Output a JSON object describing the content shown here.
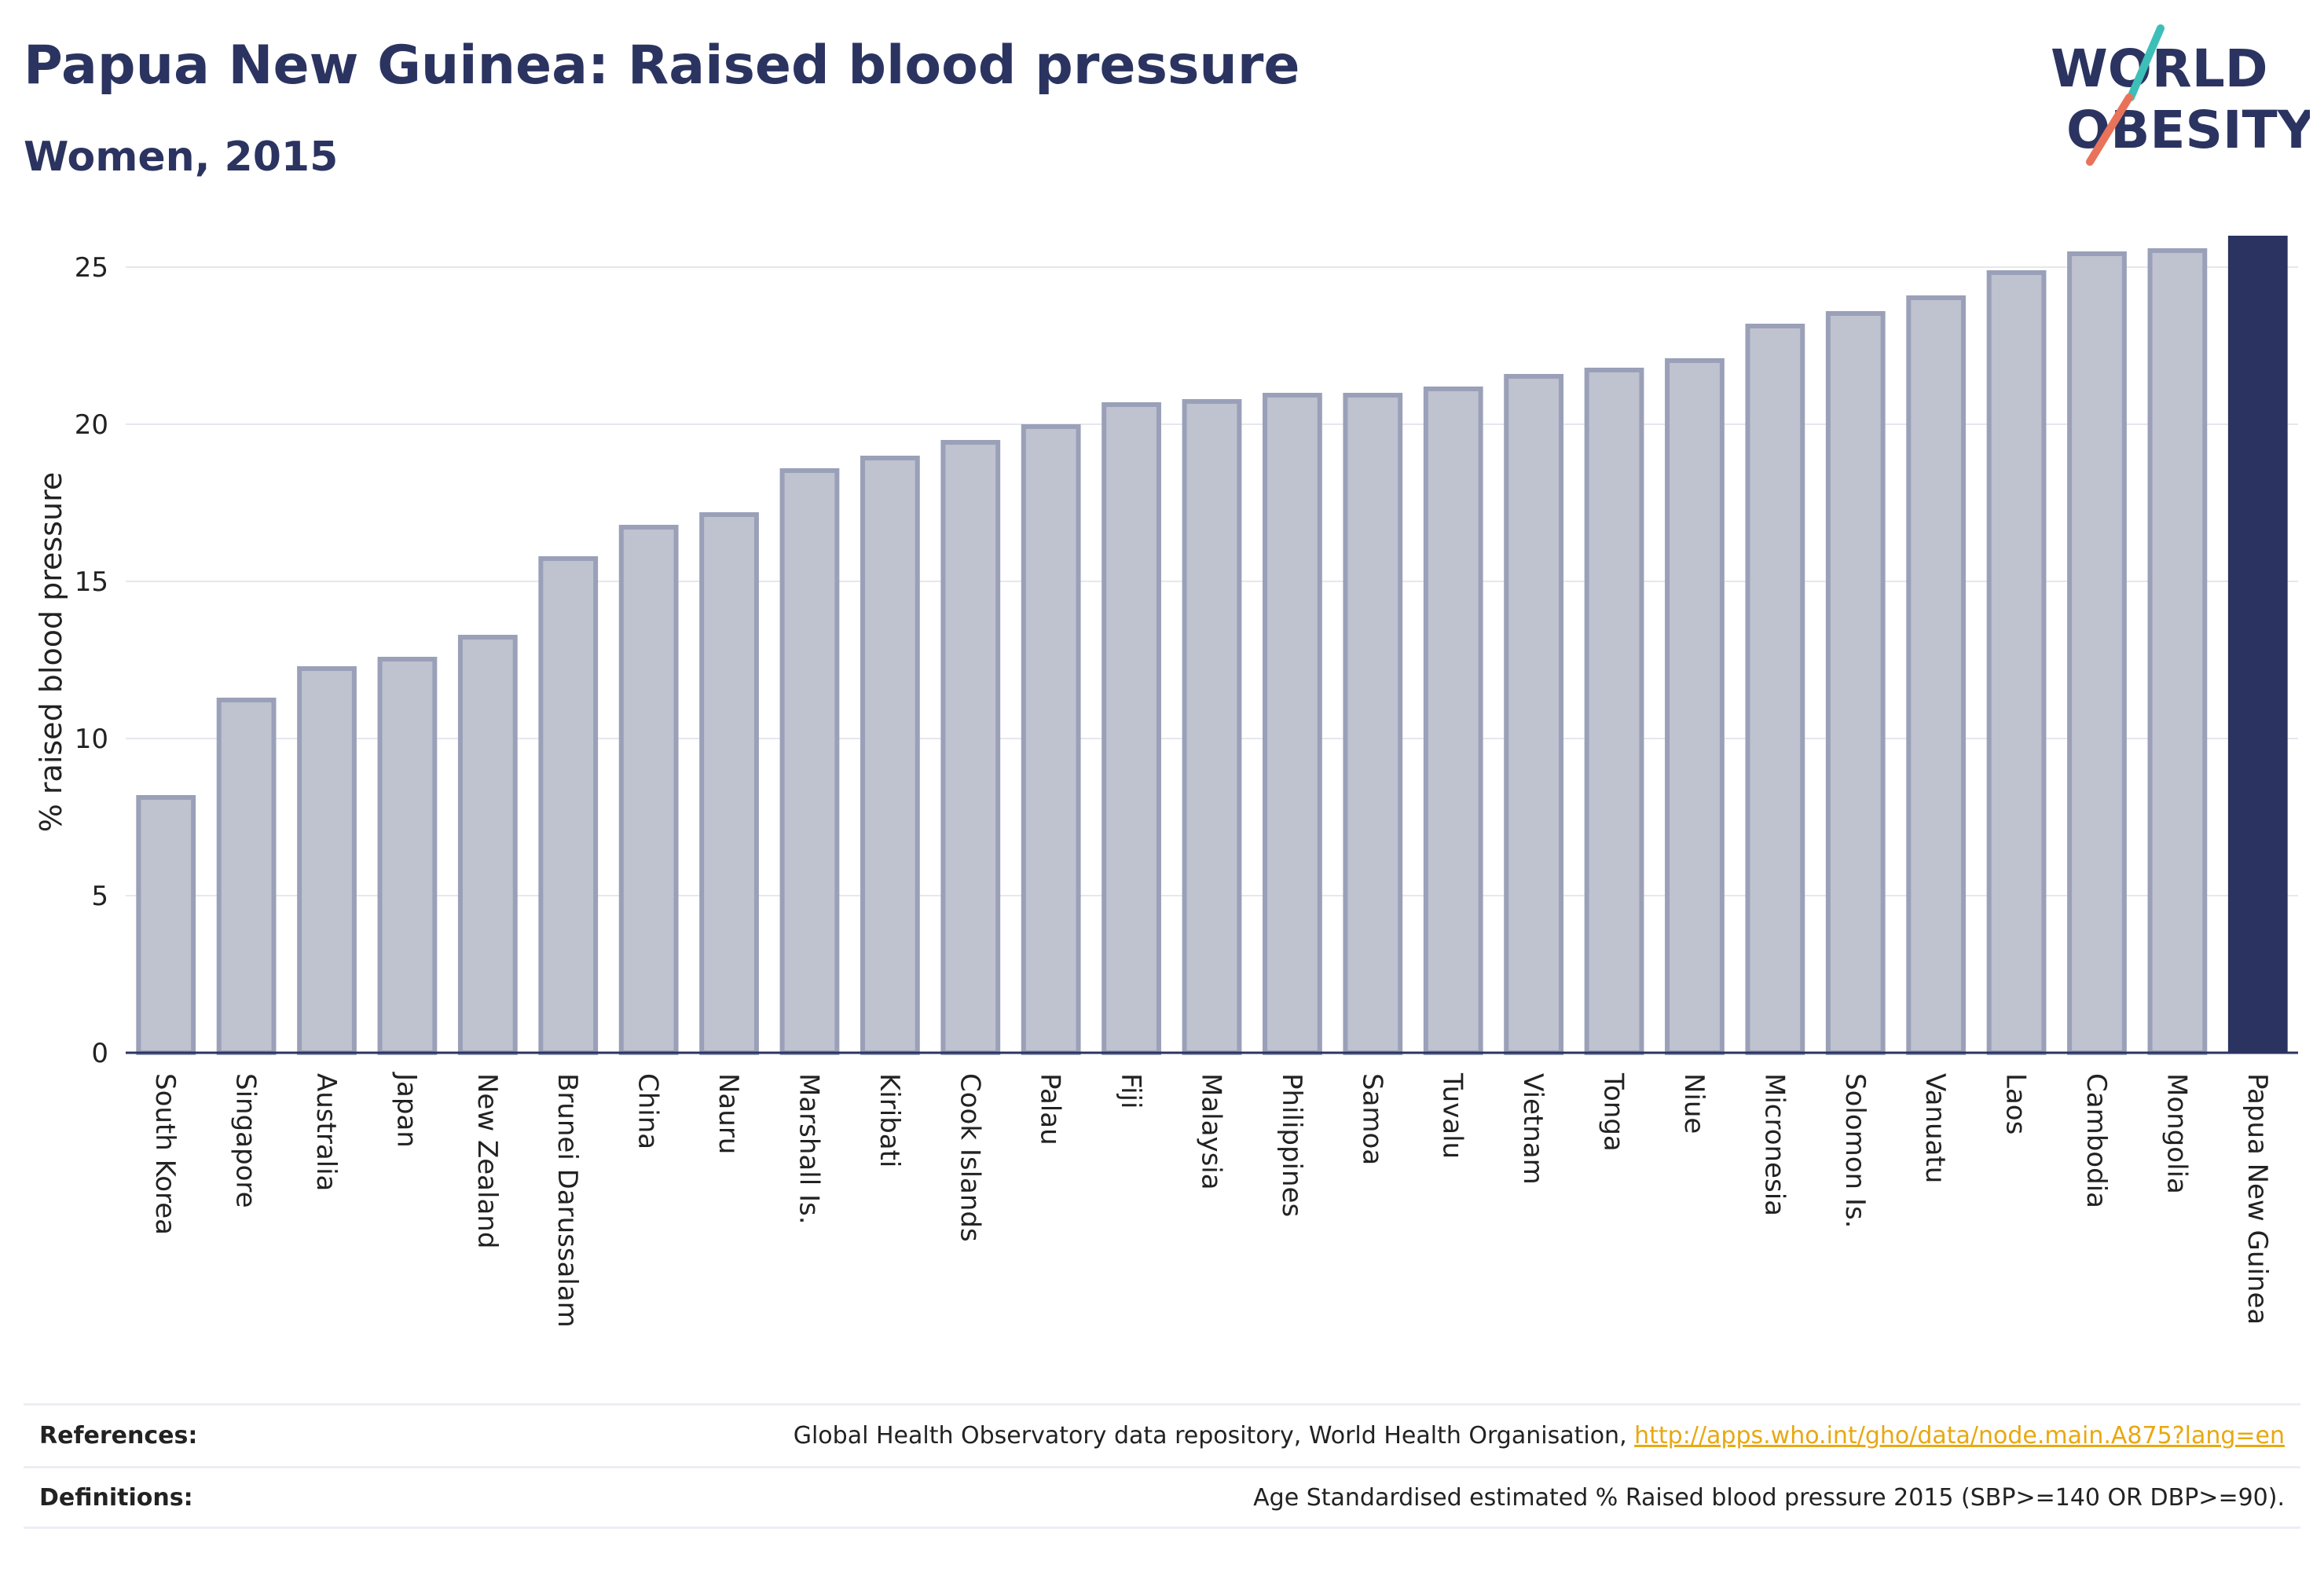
{
  "header": {
    "title": "Papua New Guinea: Raised blood pressure",
    "subtitle": "Women, 2015"
  },
  "logo": {
    "line1": "WORLD",
    "line2": "OBESITY",
    "accent_colors": [
      "#3dbfb8",
      "#e8735a"
    ]
  },
  "chart_data": {
    "type": "bar",
    "categories": [
      "South Korea",
      "Singapore",
      "Australia",
      "Japan",
      "New Zealand",
      "Brunei Darussalam",
      "China",
      "Nauru",
      "Marshall Is.",
      "Kiribati",
      "Cook Islands",
      "Palau",
      "Fiji",
      "Malaysia",
      "Philippines",
      "Samoa",
      "Tuvalu",
      "Vietnam",
      "Tonga",
      "Niue",
      "Micronesia",
      "Solomon Is.",
      "Vanuatu",
      "Laos",
      "Cambodia",
      "Mongolia",
      "Papua New Guinea"
    ],
    "values": [
      8.2,
      11.3,
      12.3,
      12.6,
      13.3,
      15.8,
      16.8,
      17.2,
      18.6,
      19.0,
      19.5,
      20.0,
      20.7,
      20.8,
      21.0,
      21.0,
      21.2,
      21.6,
      21.8,
      22.1,
      23.2,
      23.6,
      24.1,
      24.9,
      25.5,
      25.6,
      26.0
    ],
    "highlight": "Papua New Guinea",
    "ylabel": "% raised blood pressure",
    "xlabel": "",
    "ylim": [
      0,
      26
    ],
    "yticks": [
      0,
      5,
      10,
      15,
      20,
      25
    ],
    "grid": true,
    "colors": {
      "bar": "#bfc2cf",
      "bar_border": "#9aa0b8",
      "highlight": "#2b3460"
    }
  },
  "footer": {
    "references_label": "References:",
    "references_text": "Global Health Observatory data repository, World Health Organisation, ",
    "references_link": "http://apps.who.int/gho/data/node.main.A875?lang=en",
    "definitions_label": "Definitions:",
    "definitions_text": "Age Standardised estimated % Raised blood pressure 2015 (SBP>=140 OR DBP>=90)."
  }
}
